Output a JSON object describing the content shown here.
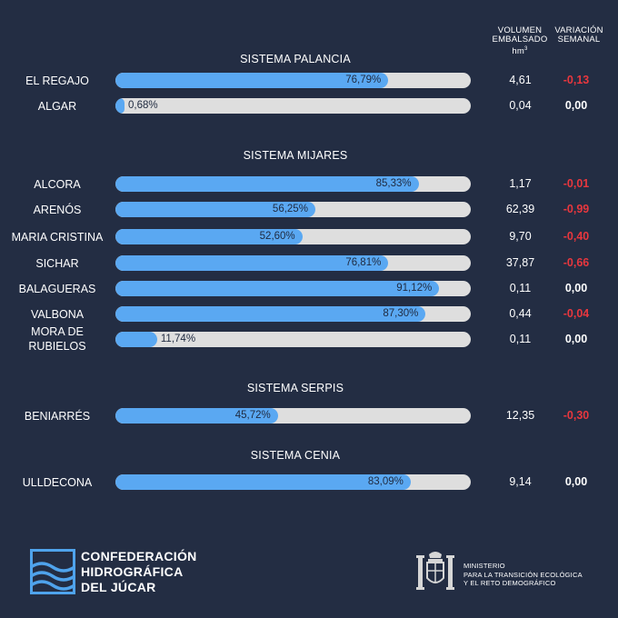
{
  "header": {
    "vol_l1": "VOLUMEN",
    "vol_l2": "EMBALSADO",
    "vol_unit": "hm",
    "vol_unit_sup": "3",
    "var_l1": "VARIACIÓN",
    "var_l2": "SEMANAL"
  },
  "chart_data": {
    "type": "bar",
    "xlim": [
      0,
      100
    ],
    "bar_color": "#5aa8f2",
    "track_color": "#dedede",
    "negative_color": "#e8373e",
    "sections": [
      {
        "title": "SISTEMA PALANCIA",
        "rows": [
          {
            "name": "EL REGAJO",
            "pct": 76.79,
            "pct_label": "76,79%",
            "volume": "4,61",
            "variation": "-0,13"
          },
          {
            "name": "ALGAR",
            "pct": 0.68,
            "pct_label": "0,68%",
            "volume": "0,04",
            "variation": "0,00"
          }
        ]
      },
      {
        "title": "SISTEMA MIJARES",
        "rows": [
          {
            "name": "ALCORA",
            "pct": 85.33,
            "pct_label": "85,33%",
            "volume": "1,17",
            "variation": "-0,01"
          },
          {
            "name": "ARENÓS",
            "pct": 56.25,
            "pct_label": "56,25%",
            "volume": "62,39",
            "variation": "-0,99"
          },
          {
            "name": "MARIA CRISTINA",
            "pct": 52.6,
            "pct_label": "52,60%",
            "volume": "9,70",
            "variation": "-0,40"
          },
          {
            "name": "SICHAR",
            "pct": 76.81,
            "pct_label": "76,81%",
            "volume": "37,87",
            "variation": "-0,66"
          },
          {
            "name": "BALAGUERAS",
            "pct": 91.12,
            "pct_label": "91,12%",
            "volume": "0,11",
            "variation": "0,00"
          },
          {
            "name": "VALBONA",
            "pct": 87.3,
            "pct_label": "87,30%",
            "volume": "0,44",
            "variation": "-0,04"
          },
          {
            "name": "MORA DE RUBIELOS",
            "name_lines": [
              "MORA DE",
              "RUBIELOS"
            ],
            "pct": 11.74,
            "pct_label": "11,74%",
            "volume": "0,11",
            "variation": "0,00"
          }
        ]
      },
      {
        "title": "SISTEMA SERPIS",
        "rows": [
          {
            "name": "BENIARRÉS",
            "pct": 45.72,
            "pct_label": "45,72%",
            "volume": "12,35",
            "variation": "-0,30"
          }
        ]
      },
      {
        "title": "SISTEMA CENIA",
        "rows": [
          {
            "name": "ULLDECONA",
            "pct": 83.09,
            "pct_label": "83,09%",
            "volume": "9,14",
            "variation": "0,00"
          }
        ]
      }
    ]
  },
  "footer": {
    "org_lines": [
      "CONFEDERACIÓN",
      "HIDROGRÁFICA",
      "DEL JÚCAR"
    ],
    "org_icon": "waves-logo-icon",
    "ministry_lines": [
      "MINISTERIO",
      "PARA LA TRANSICIÓN ECOLÓGICA",
      "Y EL RETO DEMOGRÁFICO"
    ],
    "ministry_icon": "coat-of-arms-icon"
  }
}
